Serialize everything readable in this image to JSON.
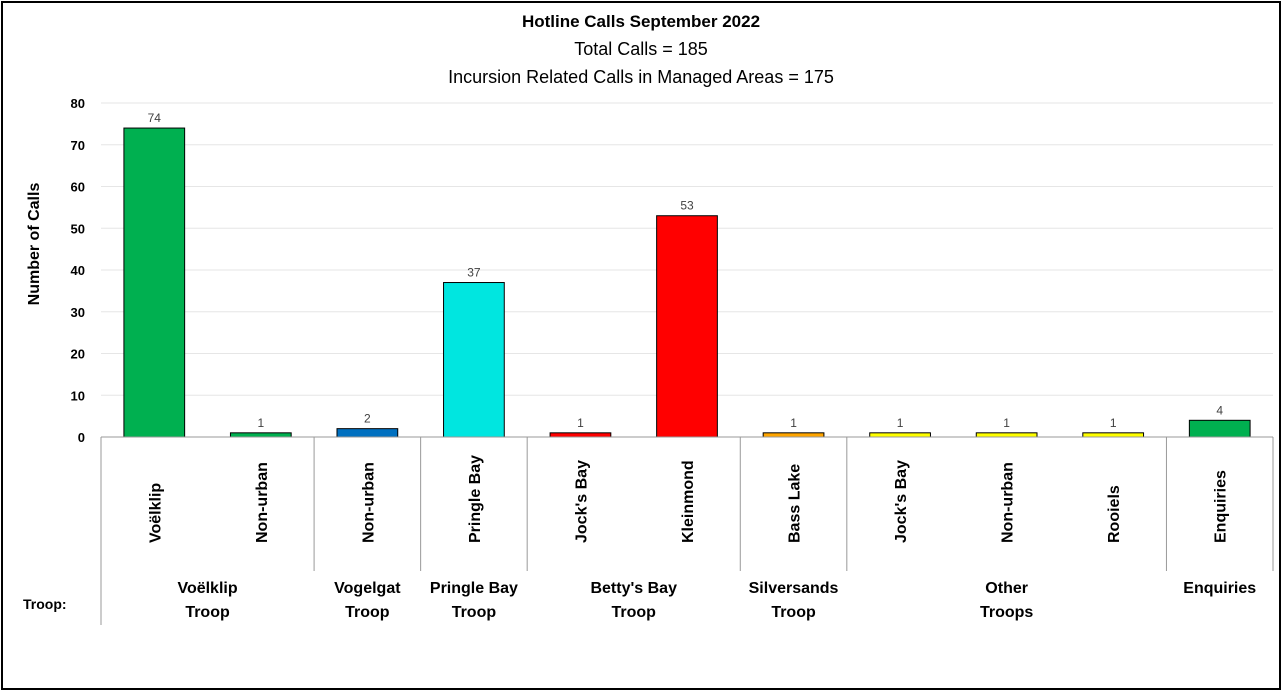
{
  "chart_data": {
    "type": "bar",
    "title": "Hotline Calls September 2022",
    "subtitle": [
      "Total Calls = 185",
      "Incursion Related Calls in Managed Areas = 175"
    ],
    "ylabel": "Number of Calls",
    "ylim": [
      0,
      80
    ],
    "yticks": [
      0,
      10,
      20,
      30,
      40,
      50,
      60,
      70,
      80
    ],
    "grid": true,
    "troop_label": "Troop:",
    "categories": [
      "Voëlklip",
      "Non-urban",
      "Non-urban",
      "Pringle Bay",
      "Jock's Bay",
      "Kleinmond",
      "Bass Lake",
      "Jock's Bay",
      "Non-urban",
      "Rooiels",
      "Enquiries"
    ],
    "values": [
      74,
      1,
      2,
      37,
      1,
      53,
      1,
      1,
      1,
      1,
      4
    ],
    "colors": [
      "#00B050",
      "#00B050",
      "#0070C0",
      "#00E6E0",
      "#FF0000",
      "#FF0000",
      "#FFA500",
      "#FFFF00",
      "#FFFF00",
      "#FFFF00",
      "#00B050"
    ],
    "groups": [
      {
        "label": [
          "Voëlklip",
          "Troop"
        ],
        "start": 0,
        "end": 1
      },
      {
        "label": [
          "Vogelgat",
          "Troop"
        ],
        "start": 2,
        "end": 2
      },
      {
        "label": [
          "Pringle Bay",
          "Troop"
        ],
        "start": 3,
        "end": 3
      },
      {
        "label": [
          "Betty's Bay",
          "Troop"
        ],
        "start": 4,
        "end": 5
      },
      {
        "label": [
          "Silversands",
          "Troop"
        ],
        "start": 6,
        "end": 6
      },
      {
        "label": [
          "Other",
          "Troops"
        ],
        "start": 7,
        "end": 9
      },
      {
        "label": [
          "Enquiries"
        ],
        "start": 10,
        "end": 10
      }
    ]
  }
}
